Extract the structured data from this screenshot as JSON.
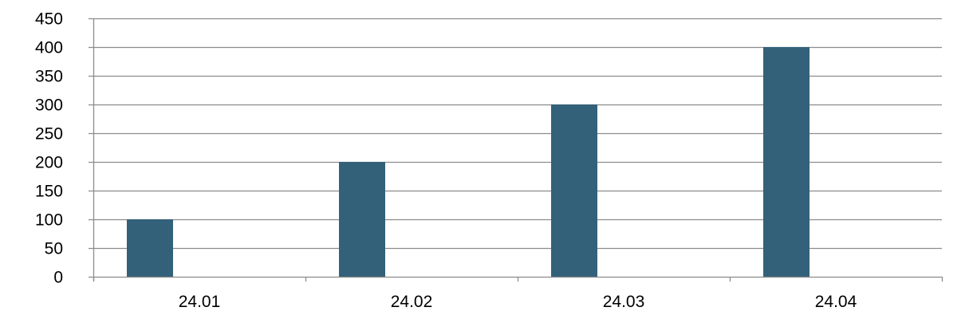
{
  "chart_data": {
    "type": "bar",
    "categories": [
      "24.01",
      "24.02",
      "24.03",
      "24.04"
    ],
    "values": [
      100,
      200,
      300,
      400
    ],
    "title": "",
    "xlabel": "",
    "ylabel": "",
    "ylim": [
      0,
      450
    ],
    "yticks": [
      0,
      50,
      100,
      150,
      200,
      250,
      300,
      350,
      400,
      450
    ],
    "grid": true,
    "legend": "none",
    "bar_color": "#336179",
    "grid_color": "#8c8c8c"
  }
}
